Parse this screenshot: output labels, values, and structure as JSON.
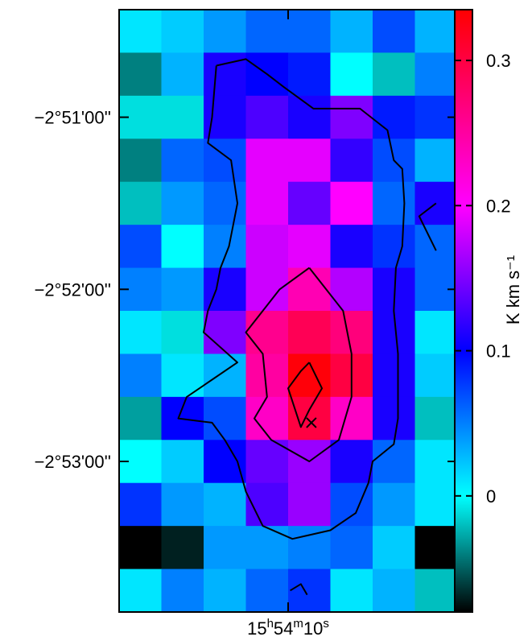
{
  "chart_data": {
    "type": "heatmap",
    "title": "",
    "xlabel": "",
    "ylabel": "",
    "x_ticks": [
      {
        "text": "15",
        "sup": "h",
        "text2": "54",
        "sup2": "m",
        "text3": "10",
        "sup3": "s",
        "col": 4.0
      }
    ],
    "y_ticks": [
      {
        "label": "−2°51'00''",
        "row": 2.5
      },
      {
        "label": "−2°52'00''",
        "row": 6.5
      },
      {
        "label": "−2°53'00''",
        "row": 10.5
      }
    ],
    "n_cols": 8,
    "n_rows": 14,
    "values": [
      [
        0.01,
        0.02,
        0.04,
        0.06,
        0.06,
        0.03,
        0.07,
        0.03
      ],
      [
        -0.04,
        0.03,
        0.11,
        0.1,
        0.09,
        0.0,
        -0.02,
        0.05
      ],
      [
        -0.01,
        -0.01,
        0.11,
        0.13,
        0.11,
        0.15,
        0.09,
        0.08
      ],
      [
        -0.04,
        0.06,
        0.07,
        0.19,
        0.19,
        0.12,
        0.07,
        0.03
      ],
      [
        -0.02,
        0.04,
        0.06,
        0.19,
        0.14,
        0.2,
        0.06,
        0.11
      ],
      [
        0.07,
        0.0,
        0.05,
        0.18,
        0.19,
        0.11,
        0.08,
        0.06
      ],
      [
        0.05,
        0.04,
        0.11,
        0.18,
        0.24,
        0.17,
        0.11,
        0.06
      ],
      [
        0.01,
        -0.01,
        0.15,
        0.26,
        0.29,
        0.27,
        0.11,
        0.01
      ],
      [
        0.05,
        0.01,
        0.03,
        0.25,
        0.33,
        0.3,
        0.11,
        0.02
      ],
      [
        -0.03,
        0.1,
        0.07,
        0.23,
        0.3,
        0.23,
        0.11,
        -0.02
      ],
      [
        0.0,
        0.02,
        0.1,
        0.14,
        0.16,
        0.11,
        0.06,
        0.01
      ],
      [
        0.08,
        0.04,
        0.03,
        0.13,
        0.16,
        0.07,
        0.04,
        0.01
      ],
      [
        -0.08,
        -0.07,
        0.04,
        0.04,
        0.05,
        0.06,
        0.02,
        -0.08
      ],
      [
        0.01,
        0.05,
        0.03,
        0.06,
        0.08,
        0.01,
        0.03,
        -0.02
      ]
    ],
    "color_range": [
      -0.08,
      0.335
    ],
    "colormap": [
      {
        "v": -0.08,
        "color": "#000000"
      },
      {
        "v": 0.0,
        "color": "#00ffff"
      },
      {
        "v": 0.1,
        "color": "#0000ff"
      },
      {
        "v": 0.2,
        "color": "#ff00ff"
      },
      {
        "v": 0.335,
        "color": "#ff0000"
      }
    ],
    "colorbar": {
      "title": "K km s⁻¹",
      "ticks": [
        {
          "value": 0.3,
          "label": "0.3"
        },
        {
          "value": 0.2,
          "label": "0.2"
        },
        {
          "value": 0.1,
          "label": "0.1"
        },
        {
          "value": 0.0,
          "label": "0"
        }
      ]
    },
    "contours": [
      {
        "level": "outer",
        "points": [
          [
            2.3,
            1.3
          ],
          [
            3.0,
            1.15
          ],
          [
            3.5,
            1.5
          ],
          [
            3.9,
            1.8
          ],
          [
            4.6,
            2.3
          ],
          [
            5.7,
            2.3
          ],
          [
            6.35,
            2.8
          ],
          [
            6.5,
            3.5
          ],
          [
            6.7,
            3.7
          ],
          [
            6.75,
            4.5
          ],
          [
            6.7,
            5.5
          ],
          [
            6.55,
            6.0
          ],
          [
            6.5,
            7.0
          ],
          [
            6.6,
            8.0
          ],
          [
            6.6,
            9.5
          ],
          [
            6.5,
            10.1
          ],
          [
            6.0,
            10.5
          ],
          [
            5.9,
            11.0
          ],
          [
            5.6,
            11.7
          ],
          [
            5.0,
            12.1
          ],
          [
            4.1,
            12.3
          ],
          [
            3.4,
            12.0
          ],
          [
            3.0,
            11.2
          ],
          [
            2.8,
            10.5
          ],
          [
            2.5,
            10.0
          ],
          [
            2.2,
            9.6
          ],
          [
            1.4,
            9.5
          ],
          [
            1.6,
            9.0
          ],
          [
            2.2,
            8.6
          ],
          [
            2.8,
            8.2
          ],
          [
            2.0,
            7.5
          ],
          [
            2.1,
            7.0
          ],
          [
            2.3,
            6.5
          ],
          [
            2.4,
            6.0
          ],
          [
            2.6,
            5.5
          ],
          [
            2.7,
            5.0
          ],
          [
            2.8,
            4.5
          ],
          [
            2.65,
            3.5
          ],
          [
            2.1,
            3.1
          ],
          [
            2.2,
            2.5
          ],
          [
            2.3,
            1.3
          ]
        ]
      },
      {
        "level": "middle",
        "points": [
          [
            4.5,
            6.0
          ],
          [
            5.3,
            7.0
          ],
          [
            5.5,
            8.0
          ],
          [
            5.5,
            9.0
          ],
          [
            5.2,
            10.0
          ],
          [
            4.5,
            10.5
          ],
          [
            3.6,
            10.0
          ],
          [
            3.2,
            9.5
          ],
          [
            3.5,
            9.0
          ],
          [
            3.4,
            8.0
          ],
          [
            3.0,
            7.5
          ],
          [
            3.8,
            6.5
          ],
          [
            4.5,
            6.0
          ]
        ]
      },
      {
        "level": "inner",
        "points": [
          [
            4.5,
            8.2
          ],
          [
            4.8,
            8.8
          ],
          [
            4.5,
            9.3
          ],
          [
            4.3,
            9.7
          ],
          [
            4.0,
            8.8
          ],
          [
            4.3,
            8.4
          ],
          [
            4.5,
            8.2
          ]
        ]
      },
      {
        "level": "edge-right",
        "points": [
          [
            7.5,
            4.5
          ],
          [
            7.1,
            4.8
          ],
          [
            7.5,
            5.6
          ]
        ]
      },
      {
        "level": "edge-bottom",
        "points": [
          [
            4.05,
            13.5
          ],
          [
            4.3,
            13.35
          ],
          [
            4.45,
            13.6
          ]
        ]
      }
    ],
    "marker": {
      "symbol": "x",
      "col": 4.55,
      "row": 9.6
    }
  }
}
